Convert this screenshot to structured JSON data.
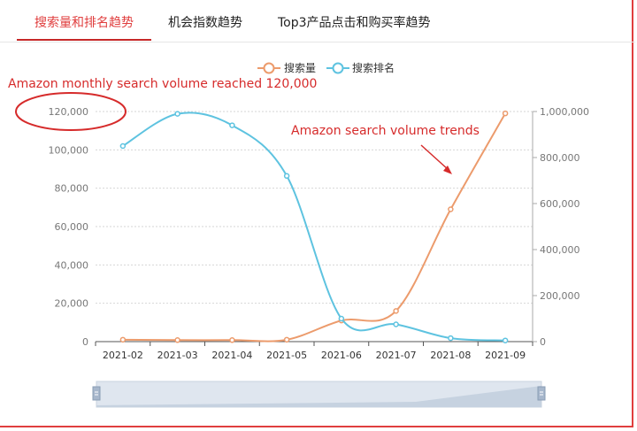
{
  "tabs": [
    {
      "label": "搜索量和排名趋势",
      "active": true
    },
    {
      "label": "机会指数趋势",
      "active": false
    },
    {
      "label": "Top3产品点击和购买率趋势",
      "active": false
    }
  ],
  "colors": {
    "search_volume": "#ec9b6c",
    "search_rank": "#5ec3e0",
    "annotation": "#d62b2b",
    "active_tab": "#e03e3e"
  },
  "annotations": {
    "left_note": "Amazon monthly search volume reached 120,000",
    "right_note": "Amazon search volume trends"
  },
  "chart_data": {
    "type": "line",
    "categories": [
      "2021-02",
      "2021-03",
      "2021-04",
      "2021-05",
      "2021-06",
      "2021-07",
      "2021-08",
      "2021-09"
    ],
    "series": [
      {
        "name": "搜索量",
        "axis": "left",
        "values": [
          1000,
          800,
          800,
          1000,
          11000,
          16000,
          69000,
          119000
        ]
      },
      {
        "name": "搜索排名",
        "axis": "right",
        "values": [
          850000,
          990000,
          940000,
          720000,
          100000,
          75000,
          15000,
          5000
        ]
      }
    ],
    "y_left": {
      "min": 0,
      "max": 120000,
      "ticks": [
        "0",
        "20,000",
        "40,000",
        "60,000",
        "80,000",
        "100,000",
        "120,000"
      ]
    },
    "y_right": {
      "min": 0,
      "max": 1000000,
      "ticks": [
        "0",
        "200,000",
        "400,000",
        "600,000",
        "800,000",
        "1,000,000"
      ]
    },
    "legend_position": "top-center",
    "grid": true,
    "data_zoom_slider": true
  }
}
